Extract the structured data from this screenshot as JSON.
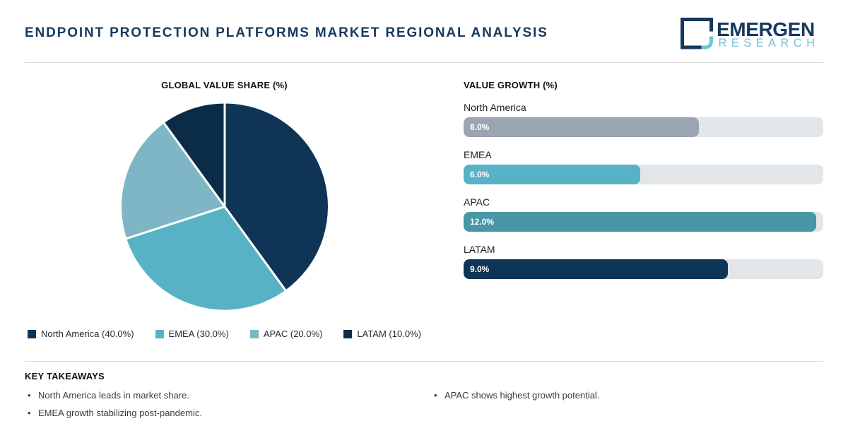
{
  "header": {
    "title": "ENDPOINT PROTECTION PLATFORMS MARKET REGIONAL ANALYSIS",
    "logo": {
      "name": "EMERGEN",
      "subname": "RESEARCH"
    }
  },
  "colors": {
    "title_navy": "#16395E",
    "logo_accent_blue": "#74C0D6",
    "pie_north_america": "#0E3456",
    "pie_emea": "#58B2C6",
    "pie_apac": "#7EB6C6",
    "pie_latam": "#0B2C46",
    "bar_north_america": "#9AA5B1",
    "bar_emea": "#58B2C6",
    "bar_apac": "#4897A6",
    "bar_latam": "#0E3456",
    "bar_track": "#E2E6E9"
  },
  "chart_data": [
    {
      "type": "pie",
      "title": "GLOBAL VALUE SHARE (%)",
      "labels": [
        "North America",
        "EMEA",
        "APAC",
        "LATAM"
      ],
      "values": [
        40.0,
        30.0,
        20.0,
        10.0
      ],
      "colors": [
        "#0E3456",
        "#58B2C6",
        "#7EB6C6",
        "#0B2C46"
      ],
      "legend_labels": [
        "North America (40.0%)",
        "EMEA (30.0%)",
        "APAC (20.0%)",
        "LATAM (10.0%)"
      ],
      "legend_position": "bottom",
      "start_angle_deg_from_north": 0,
      "direction": "clockwise",
      "slice_border_color": "#FFFFFF"
    },
    {
      "type": "bar",
      "orientation": "horizontal",
      "title": "VALUE GROWTH (%)",
      "categories": [
        "North America",
        "EMEA",
        "APAC",
        "LATAM"
      ],
      "values": [
        8.0,
        6.0,
        12.0,
        9.0
      ],
      "value_labels": [
        "8.0%",
        "6.0%",
        "12.0%",
        "9.0%"
      ],
      "colors": [
        "#9AA5B1",
        "#58B2C6",
        "#4897A6",
        "#0E3456"
      ],
      "xlim": [
        0,
        12.24
      ],
      "grid": false
    }
  ],
  "takeaways": {
    "heading": "KEY TAKEAWAYS",
    "items": [
      "North America leads in market share.",
      "EMEA growth stabilizing post-pandemic.",
      "APAC shows highest growth potential."
    ]
  }
}
